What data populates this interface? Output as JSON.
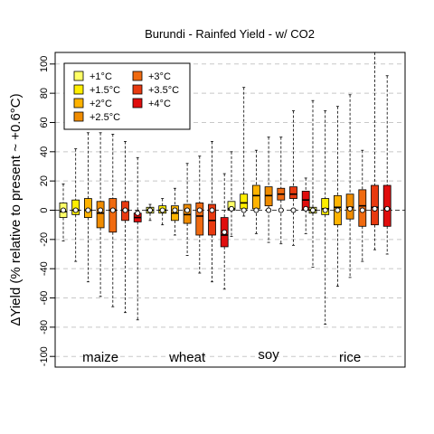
{
  "chart_data": {
    "type": "boxplot",
    "title": "Burundi - Rainfed Yield - w/ CO2",
    "ylabel": "ΔYield (% relative to present ~ +0.6°C)",
    "ylim": [
      -107,
      107
    ],
    "yticks": [
      -100,
      -80,
      -60,
      -40,
      -20,
      0,
      20,
      40,
      60,
      80,
      100
    ],
    "grid": "horizontal dashed",
    "legend_position": "top-left",
    "legend": [
      {
        "label": "+1°C",
        "color": "#ffff66"
      },
      {
        "label": "+1.5°C",
        "color": "#ffee00"
      },
      {
        "label": "+2°C",
        "color": "#ffb300"
      },
      {
        "label": "+2.5°C",
        "color": "#f08c00"
      },
      {
        "label": "+3°C",
        "color": "#f06a10"
      },
      {
        "label": "+3.5°C",
        "color": "#e83a10"
      },
      {
        "label": "+4°C",
        "color": "#e00d0d"
      }
    ],
    "groups": [
      {
        "name": "maize",
        "boxes": [
          {
            "level": "+1°C",
            "whisker_low": -21,
            "q1": -5,
            "median": -1,
            "mean": 0,
            "q3": 5,
            "whisker_high": 18
          },
          {
            "level": "+1.5°C",
            "whisker_low": -35,
            "q1": -3,
            "median": 0,
            "mean": 0,
            "q3": 7,
            "whisker_high": 42
          },
          {
            "level": "+2°C",
            "whisker_low": -49,
            "q1": -5,
            "median": 0,
            "mean": 0,
            "q3": 8,
            "whisker_high": 53
          },
          {
            "level": "+2.5°C",
            "whisker_low": -59,
            "q1": -12,
            "median": -2,
            "mean": 0,
            "q3": 6,
            "whisker_high": 53
          },
          {
            "level": "+3°C",
            "whisker_low": -66,
            "q1": -15,
            "median": 0,
            "mean": 0,
            "q3": 8,
            "whisker_high": 52
          },
          {
            "level": "+3.5°C",
            "whisker_low": -70,
            "q1": -7,
            "median": 0,
            "mean": 0,
            "q3": 6,
            "whisker_high": 47
          },
          {
            "level": "+4°C",
            "whisker_low": -75,
            "q1": -8,
            "median": -5,
            "mean": -2,
            "q3": -2,
            "whisker_high": 36
          }
        ]
      },
      {
        "name": "wheat",
        "boxes": [
          {
            "level": "+1°C",
            "whisker_low": -7,
            "q1": -2,
            "median": 0,
            "mean": 0,
            "q3": 2,
            "whisker_high": 4
          },
          {
            "level": "+1.5°C",
            "whisker_low": -10,
            "q1": -2,
            "median": 0,
            "mean": 0,
            "q3": 3,
            "whisker_high": 8
          },
          {
            "level": "+2°C",
            "whisker_low": -17,
            "q1": -7,
            "median": -2,
            "mean": 0,
            "q3": 3,
            "whisker_high": 15
          },
          {
            "level": "+2.5°C",
            "whisker_low": -31,
            "q1": -9,
            "median": -3,
            "mean": 0,
            "q3": 4,
            "whisker_high": 32
          },
          {
            "level": "+3°C",
            "whisker_low": -43,
            "q1": -17,
            "median": -4,
            "mean": 0,
            "q3": 5,
            "whisker_high": 37
          },
          {
            "level": "+3.5°C",
            "whisker_low": -49,
            "q1": -17,
            "median": -7,
            "mean": 0,
            "q3": 4,
            "whisker_high": 47
          },
          {
            "level": "+4°C",
            "whisker_low": -54,
            "q1": -25,
            "median": -17,
            "mean": -15,
            "q3": -5,
            "whisker_high": 25
          }
        ]
      },
      {
        "name": "soy",
        "boxes": [
          {
            "level": "+1°C",
            "whisker_low": -18,
            "q1": 0,
            "median": 1,
            "mean": 1,
            "q3": 6,
            "whisker_high": 40
          },
          {
            "level": "+1.5°C",
            "whisker_low": -4,
            "q1": 1,
            "median": 5,
            "mean": 0,
            "q3": 11,
            "whisker_high": 84
          },
          {
            "level": "+2°C",
            "whisker_low": -16,
            "q1": 1,
            "median": 10,
            "mean": 0,
            "q3": 17,
            "whisker_high": 41
          },
          {
            "level": "+2.5°C",
            "whisker_low": -22,
            "q1": 3,
            "median": 10,
            "mean": 0,
            "q3": 16,
            "whisker_high": 50
          },
          {
            "level": "+3°C",
            "whisker_low": -23,
            "q1": 7,
            "median": 11,
            "mean": 0,
            "q3": 15,
            "whisker_high": 50
          },
          {
            "level": "+3.5°C",
            "whisker_low": -24,
            "q1": 8,
            "median": 11,
            "mean": 0,
            "q3": 16,
            "whisker_high": 68
          },
          {
            "level": "+4°C",
            "whisker_low": -16,
            "q1": 0,
            "median": 7,
            "mean": 1,
            "q3": 13,
            "whisker_high": 22
          }
        ]
      },
      {
        "name": "rice",
        "boxes": [
          {
            "level": "+1°C",
            "whisker_low": -39,
            "q1": -2,
            "median": 0,
            "mean": 0,
            "q3": 2,
            "whisker_high": 75
          },
          {
            "level": "+1.5°C",
            "whisker_low": -78,
            "q1": -3,
            "median": 1,
            "mean": 0,
            "q3": 8,
            "whisker_high": 68
          },
          {
            "level": "+2°C",
            "whisker_low": -52,
            "q1": -10,
            "median": 2,
            "mean": 0,
            "q3": 10,
            "whisker_high": 71
          },
          {
            "level": "+2.5°C",
            "whisker_low": -46,
            "q1": -6,
            "median": 2,
            "mean": 1,
            "q3": 11,
            "whisker_high": 79
          },
          {
            "level": "+3°C",
            "whisker_low": -35,
            "q1": -11,
            "median": 3,
            "mean": 0,
            "q3": 14,
            "whisker_high": 41
          },
          {
            "level": "+3.5°C",
            "whisker_low": -27,
            "q1": -10,
            "median": 2,
            "mean": 1,
            "q3": 17,
            "whisker_high": 108
          },
          {
            "level": "+4°C",
            "whisker_low": -30,
            "q1": -11,
            "median": 1,
            "mean": 1,
            "q3": 17,
            "whisker_high": 92
          }
        ]
      }
    ]
  }
}
